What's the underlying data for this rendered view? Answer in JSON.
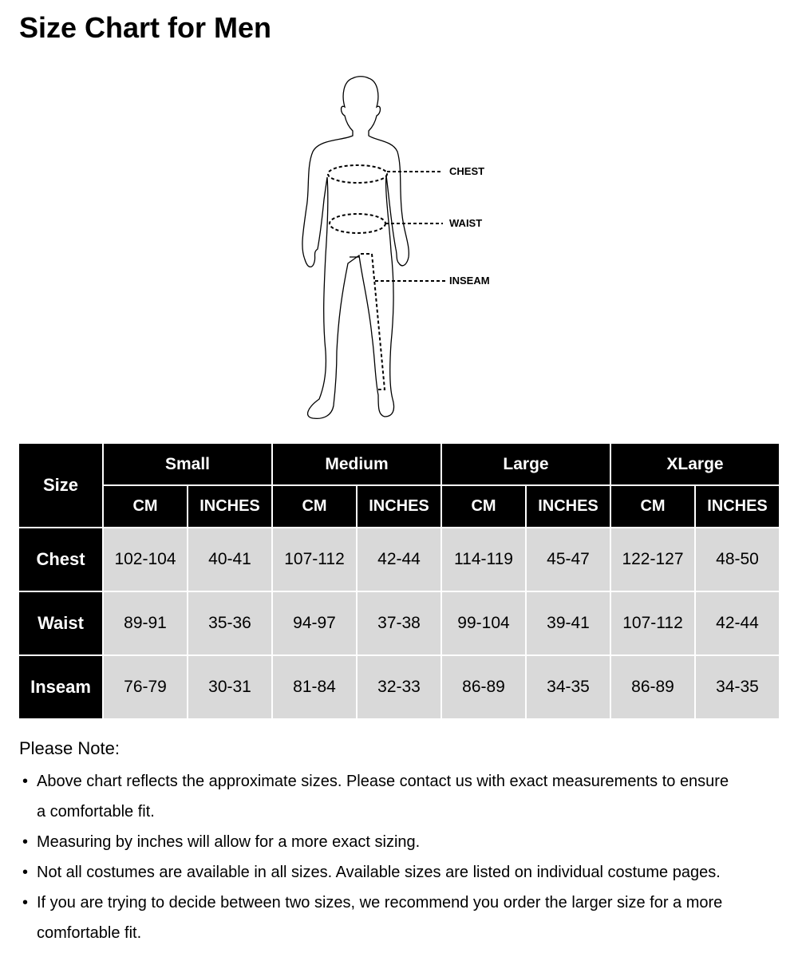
{
  "title": "Size Chart for Men",
  "figure": {
    "labels": {
      "chest": "CHEST",
      "waist": "WAIST",
      "inseam": "INSEAM"
    }
  },
  "table": {
    "corner": "Size",
    "sizes": [
      "Small",
      "Medium",
      "Large",
      "XLarge"
    ],
    "units": [
      "CM",
      "INCHES"
    ],
    "rows": [
      {
        "label": "Chest",
        "values": [
          "102-104",
          "40-41",
          "107-112",
          "42-44",
          "114-119",
          "45-47",
          "122-127",
          "48-50"
        ]
      },
      {
        "label": "Waist",
        "values": [
          "89-91",
          "35-36",
          "94-97",
          "37-38",
          "99-104",
          "39-41",
          "107-112",
          "42-44"
        ]
      },
      {
        "label": "Inseam",
        "values": [
          "76-79",
          "30-31",
          "81-84",
          "32-33",
          "86-89",
          "34-35",
          "86-89",
          "34-35"
        ]
      }
    ]
  },
  "notes": {
    "title": "Please Note:",
    "bullet": "•",
    "items": [
      "Above chart reflects the approximate sizes. Please contact us with exact measurements to ensure a comfortable fit.",
      "Measuring by inches will allow for a more exact sizing.",
      "Not all costumes are available in all sizes. Available sizes are listed on individual costume pages.",
      "If you are trying to decide between two sizes, we recommend you order the larger size for a more comfortable fit."
    ]
  }
}
